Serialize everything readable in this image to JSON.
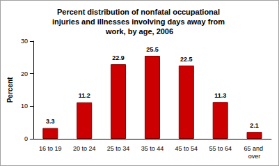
{
  "chart_data": {
    "type": "bar",
    "title": "Percent distribution of nonfatal occupational injuries and illnesses involving days away from work, by age, 2006",
    "y_label": "Percent",
    "categories": [
      "16 to 19",
      "20 to 24",
      "25 to 34",
      "35 to 44",
      "45 to 54",
      "55 to 64",
      "65 and over"
    ],
    "values": [
      3.3,
      11.2,
      22.9,
      25.5,
      22.5,
      11.3,
      2.1
    ],
    "color": "#cc0000",
    "ylim": [
      0,
      30
    ],
    "yticks": [
      0,
      10,
      20,
      30
    ],
    "grid": false,
    "data_labels": true
  }
}
